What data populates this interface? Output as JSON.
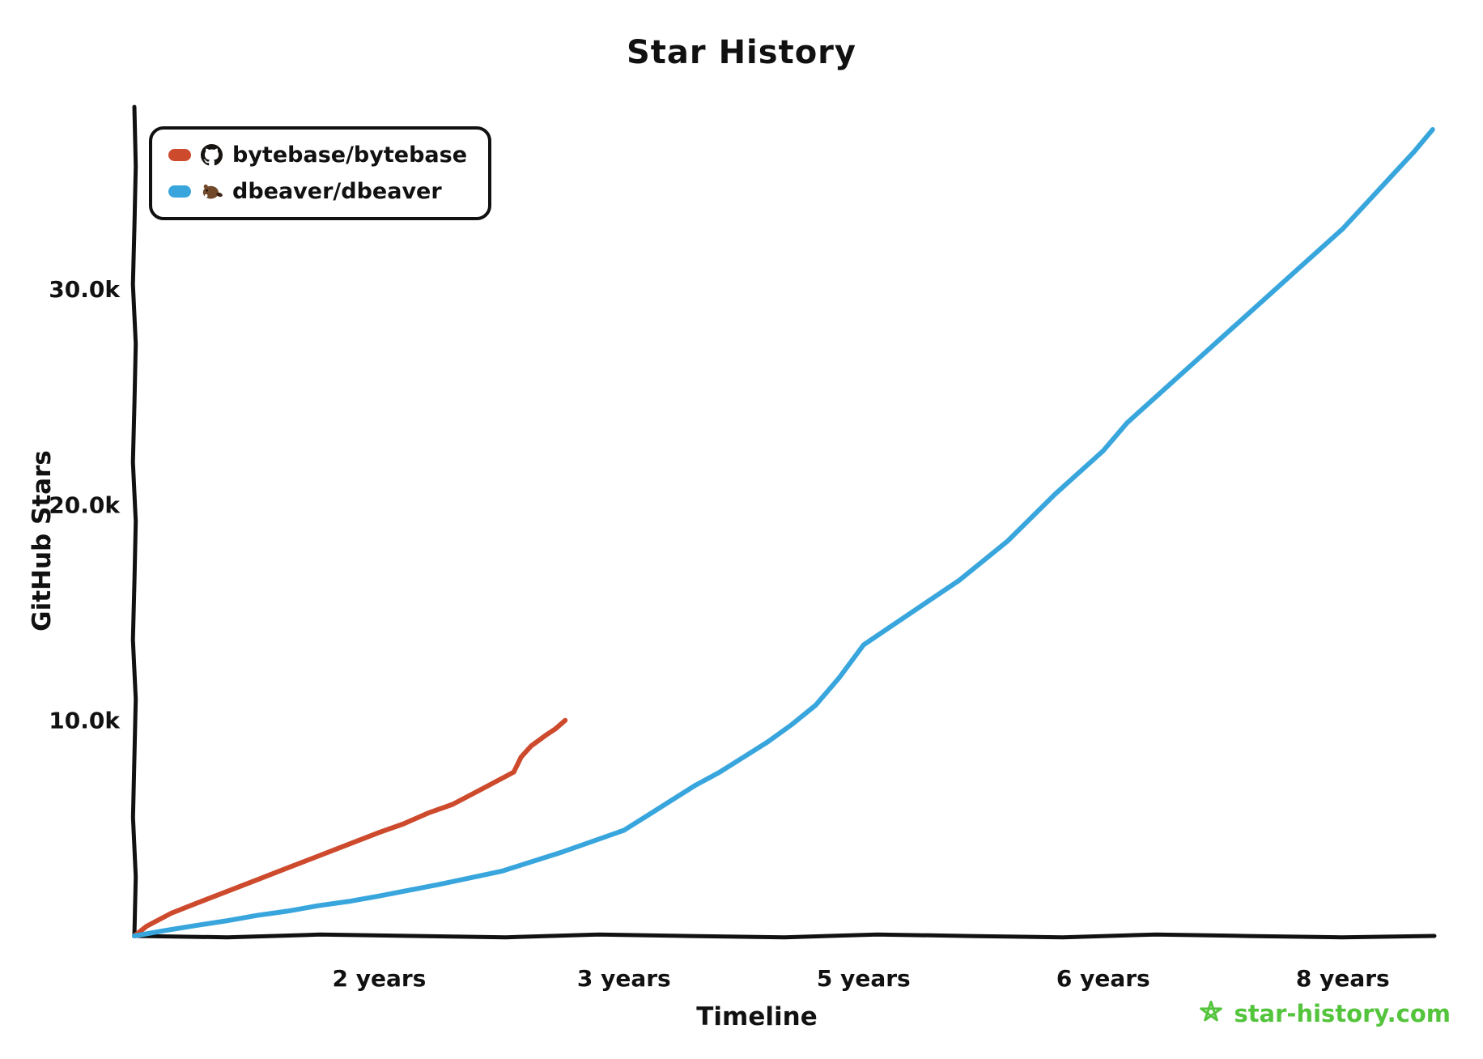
{
  "watermark": {
    "text": "star-history.com",
    "color": "#54c43c",
    "icon": "star-icon"
  },
  "legend": {
    "items": [
      {
        "label": "bytebase/bytebase",
        "icon": "github-icon",
        "color": "#cd4a2d"
      },
      {
        "label": "dbeaver/dbeaver",
        "icon": "beaver-icon",
        "color": "#38a6dd"
      }
    ]
  },
  "chart_data": {
    "type": "line",
    "title": "Star History",
    "xlabel": "Timeline",
    "ylabel": "GitHub Stars",
    "ylim": [
      0,
      38000
    ],
    "grid": false,
    "legend_position": "top-left",
    "y_ticks": [
      {
        "label": "10.0k",
        "value": 10000
      },
      {
        "label": "20.0k",
        "value": 20000
      },
      {
        "label": "30.0k",
        "value": 30000
      }
    ],
    "x_ticks": [
      {
        "label": "2 years",
        "years": 2
      },
      {
        "label": "3 years",
        "years": 3
      },
      {
        "label": "5 years",
        "years": 5
      },
      {
        "label": "6 years",
        "years": 6
      },
      {
        "label": "8 years",
        "years": 8
      }
    ],
    "x_scale": {
      "years": [
        0,
        2,
        3,
        5,
        6,
        8
      ],
      "fracs": [
        0,
        0.189,
        0.378,
        0.563,
        0.748,
        0.933
      ]
    },
    "series": [
      {
        "name": "bytebase/bytebase",
        "color": "#cd4a2d",
        "points": [
          [
            0,
            0
          ],
          [
            0.1,
            450
          ],
          [
            0.3,
            1050
          ],
          [
            0.5,
            1500
          ],
          [
            0.75,
            2050
          ],
          [
            1.0,
            2600
          ],
          [
            1.25,
            3150
          ],
          [
            1.5,
            3700
          ],
          [
            1.75,
            4250
          ],
          [
            2.0,
            4800
          ],
          [
            2.1,
            5200
          ],
          [
            2.2,
            5700
          ],
          [
            2.3,
            6100
          ],
          [
            2.4,
            6700
          ],
          [
            2.5,
            7300
          ],
          [
            2.55,
            7600
          ],
          [
            2.58,
            8300
          ],
          [
            2.62,
            8800
          ],
          [
            2.68,
            9300
          ],
          [
            2.72,
            9600
          ],
          [
            2.76,
            10000
          ]
        ]
      },
      {
        "name": "dbeaver/dbeaver",
        "color": "#38a6dd",
        "points": [
          [
            0,
            0
          ],
          [
            0.25,
            250
          ],
          [
            0.5,
            480
          ],
          [
            0.75,
            700
          ],
          [
            1.0,
            950
          ],
          [
            1.25,
            1150
          ],
          [
            1.5,
            1400
          ],
          [
            1.75,
            1600
          ],
          [
            2.0,
            1850
          ],
          [
            2.25,
            2400
          ],
          [
            2.5,
            3000
          ],
          [
            2.75,
            3900
          ],
          [
            3.0,
            4900
          ],
          [
            3.2,
            5600
          ],
          [
            3.4,
            6300
          ],
          [
            3.6,
            7000
          ],
          [
            3.8,
            7600
          ],
          [
            4.0,
            8300
          ],
          [
            4.2,
            9000
          ],
          [
            4.4,
            9800
          ],
          [
            4.6,
            10700
          ],
          [
            4.8,
            12000
          ],
          [
            5.0,
            13500
          ],
          [
            5.2,
            15000
          ],
          [
            5.4,
            16500
          ],
          [
            5.6,
            18300
          ],
          [
            5.8,
            20500
          ],
          [
            6.0,
            22500
          ],
          [
            6.2,
            23800
          ],
          [
            6.4,
            24800
          ],
          [
            6.6,
            25800
          ],
          [
            6.8,
            26800
          ],
          [
            7.0,
            27800
          ],
          [
            7.2,
            28800
          ],
          [
            7.4,
            29800
          ],
          [
            7.6,
            30800
          ],
          [
            7.8,
            31800
          ],
          [
            8.0,
            32800
          ],
          [
            8.2,
            34000
          ],
          [
            8.4,
            35200
          ],
          [
            8.6,
            36400
          ],
          [
            8.75,
            37400
          ]
        ]
      }
    ]
  }
}
